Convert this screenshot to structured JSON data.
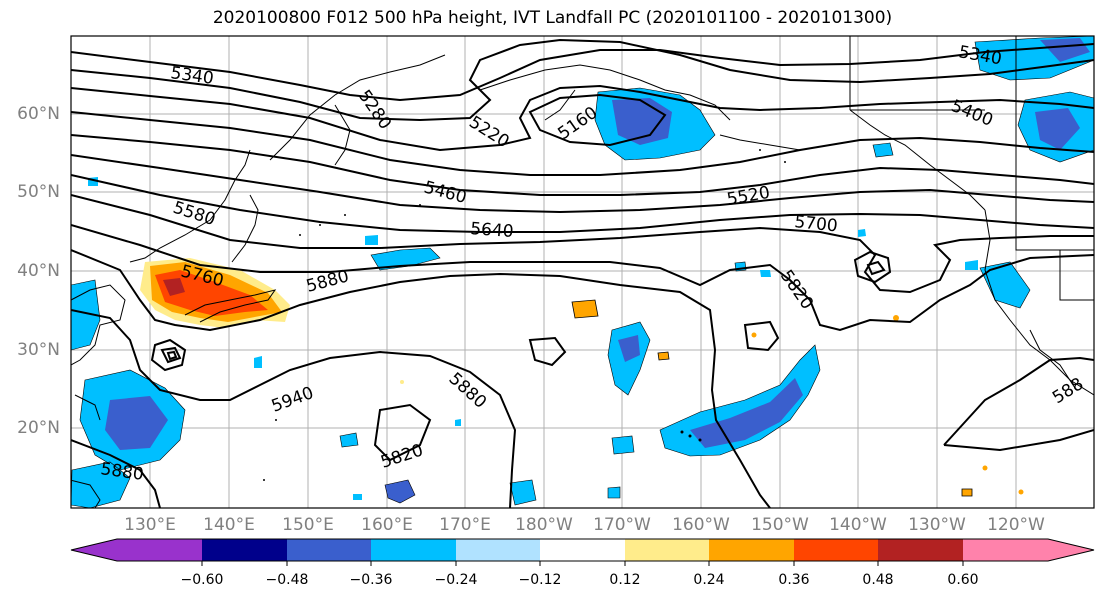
{
  "title": "2020100800 F012 500 hPa height, IVT Landfall PC (2020101100 - 2020101300)",
  "lat_labels": [
    "60°N",
    "50°N",
    "40°N",
    "30°N",
    "20°N"
  ],
  "lon_labels": [
    "130°E",
    "140°E",
    "150°E",
    "160°E",
    "170°E",
    "180°W",
    "170°W",
    "160°W",
    "150°W",
    "140°W",
    "130°W",
    "120°W"
  ],
  "contour_labels": [
    "5340",
    "5280",
    "5220",
    "5160",
    "5340",
    "5400",
    "5580",
    "5460",
    "5520",
    "5640",
    "5700",
    "5760",
    "5880",
    "5820",
    "5940",
    "5880",
    "5820",
    "5880",
    "588"
  ],
  "colorbar": {
    "ticks": [
      "−0.60",
      "−0.48",
      "−0.36",
      "−0.24",
      "−0.12",
      "0.12",
      "0.24",
      "0.36",
      "0.48",
      "0.60"
    ],
    "colors": [
      "#9932CC",
      "#00008B",
      "#3A5FCD",
      "#00BFFF",
      "#B0E2FF",
      "#FFFFFF",
      "#FFEC8B",
      "#FFA500",
      "#FF4500",
      "#B22222",
      "#FF82AB"
    ]
  }
}
